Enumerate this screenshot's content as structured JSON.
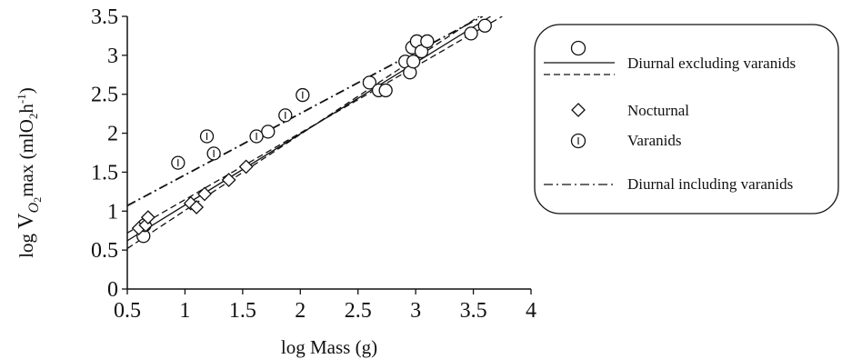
{
  "chart_data": {
    "type": "scatter",
    "xlabel": "log Mass (g)",
    "ylabel": {
      "prefix": "log ",
      "v": "V",
      "sub": "O",
      "sub2": "2",
      "mid": "max (mlO",
      "sub3": "2",
      "h": "h",
      "sup": "-1",
      "end": ")"
    },
    "xlim": [
      0.5,
      4
    ],
    "ylim": [
      0,
      3.5
    ],
    "xticks": [
      "0.5",
      "1",
      "1.5",
      "2",
      "2.5",
      "3",
      "3.5",
      "4"
    ],
    "yticks": [
      "0",
      "0.5",
      "1",
      "1.5",
      "2",
      "2.5",
      "3",
      "3.5"
    ],
    "grid": false,
    "legend_position": "right",
    "series": [
      {
        "name": "Diurnal excluding varanids",
        "marker": "circle",
        "points": [
          [
            0.64,
            0.68
          ],
          [
            0.65,
            0.82
          ],
          [
            1.72,
            2.02
          ],
          [
            2.6,
            2.65
          ],
          [
            2.68,
            2.55
          ],
          [
            2.74,
            2.55
          ],
          [
            2.91,
            2.92
          ],
          [
            2.95,
            2.78
          ],
          [
            2.97,
            3.1
          ],
          [
            2.98,
            2.92
          ],
          [
            3.01,
            3.18
          ],
          [
            3.05,
            3.05
          ],
          [
            3.1,
            3.18
          ],
          [
            3.48,
            3.28
          ],
          [
            3.6,
            3.38
          ]
        ]
      },
      {
        "name": "Nocturnal",
        "marker": "diamond",
        "points": [
          [
            0.6,
            0.78
          ],
          [
            0.66,
            0.82
          ],
          [
            0.68,
            0.92
          ],
          [
            1.05,
            1.1
          ],
          [
            1.1,
            1.05
          ],
          [
            1.17,
            1.22
          ],
          [
            1.38,
            1.4
          ],
          [
            1.53,
            1.57
          ]
        ]
      },
      {
        "name": "Varanids",
        "marker": "circle-i",
        "points": [
          [
            0.94,
            1.62
          ],
          [
            1.19,
            1.96
          ],
          [
            1.25,
            1.74
          ],
          [
            1.62,
            1.96
          ],
          [
            1.87,
            2.23
          ],
          [
            2.02,
            2.49
          ]
        ]
      }
    ],
    "regression_lines": [
      {
        "style": "solid",
        "x": [
          0.5,
          3.65
        ],
        "y": [
          0.62,
          3.5
        ]
      },
      {
        "style": "dashed",
        "x": [
          0.5,
          3.55
        ],
        "y": [
          0.52,
          3.5
        ]
      },
      {
        "style": "dashed",
        "x": [
          0.5,
          3.75
        ],
        "y": [
          0.72,
          3.5
        ]
      },
      {
        "style": "dashdot",
        "x": [
          0.5,
          3.58
        ],
        "y": [
          1.07,
          3.5
        ]
      }
    ],
    "legend": [
      {
        "label": "Diurnal excluding varanids",
        "marker": "circle",
        "lines": [
          "solid",
          "dashed"
        ]
      },
      {
        "label": "Nocturnal",
        "marker": "diamond"
      },
      {
        "label": "Varanids",
        "marker": "circle-i"
      },
      {
        "label": "Diurnal including varanids",
        "lines": [
          "dashdot"
        ]
      }
    ],
    "colors": {
      "ink": "#111111",
      "marker_fill": "#ffffff",
      "background": "#ffffff"
    }
  }
}
